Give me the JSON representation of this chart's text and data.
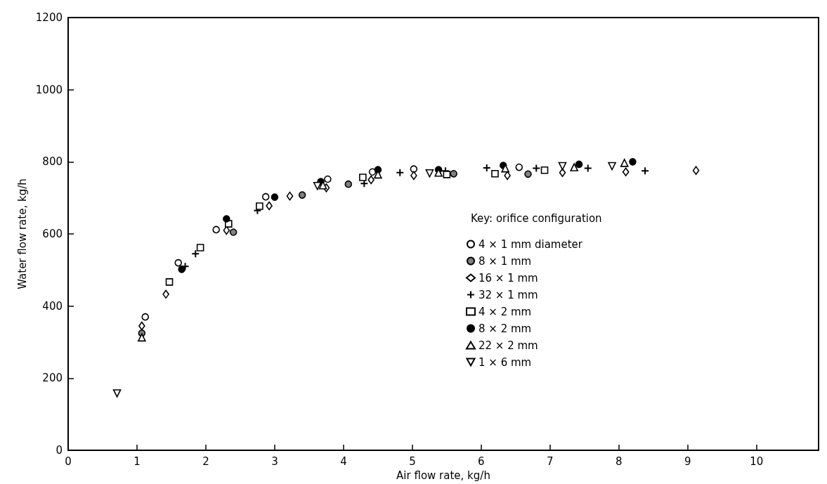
{
  "chart_data": {
    "type": "scatter",
    "xlabel": "Air flow rate, kg/h",
    "ylabel": "Water flow rate, kg/h",
    "legend_title": "Key: orifice configuration",
    "legend": "right",
    "grid": false,
    "xlim": [
      0,
      10.9
    ],
    "xticks": [
      0,
      1,
      2,
      3,
      4,
      5,
      6,
      7,
      8,
      9,
      10
    ],
    "ylim": [
      0,
      1200
    ],
    "yticks": [
      0,
      200,
      400,
      600,
      800,
      1000,
      1200
    ],
    "series": [
      {
        "name": "4 × 1 mm diameter",
        "color": "#ffffff",
        "marker": "circle",
        "x": [
          1.12,
          1.6,
          2.15,
          2.87,
          3.77,
          4.42,
          5.02,
          6.55
        ],
        "values": [
          370,
          520,
          612,
          703,
          752,
          772,
          780,
          785
        ]
      },
      {
        "name": "8 × 1 mm",
        "color": "#808080",
        "marker": "circle",
        "x": [
          1.07,
          2.4,
          3.4,
          4.07,
          5.6,
          6.68
        ],
        "values": [
          325,
          605,
          708,
          738,
          767,
          766
        ]
      },
      {
        "name": "16 × 1 mm",
        "color": "#ffffff",
        "marker": "diamond",
        "x": [
          1.07,
          1.42,
          2.3,
          2.92,
          3.22,
          3.75,
          4.4,
          5.02,
          6.38,
          7.18,
          8.1,
          9.12
        ],
        "values": [
          345,
          433,
          610,
          678,
          705,
          728,
          750,
          762,
          762,
          770,
          772,
          776
        ]
      },
      {
        "name": "32 × 1 mm",
        "color": "#000000",
        "marker": "cross",
        "x": [
          1.7,
          1.85,
          2.75,
          4.3,
          4.82,
          5.48,
          6.08,
          6.8,
          7.55,
          8.38
        ],
        "values": [
          510,
          545,
          665,
          740,
          770,
          775,
          783,
          782,
          782,
          775
        ]
      },
      {
        "name": "4 × 2 mm",
        "color": "#ffffff",
        "marker": "square",
        "x": [
          1.47,
          1.92,
          2.33,
          2.78,
          4.28,
          5.5,
          6.2,
          6.92
        ],
        "values": [
          467,
          562,
          628,
          677,
          757,
          765,
          767,
          777
        ]
      },
      {
        "name": "8 × 2 mm",
        "color": "#000000",
        "marker": "circle",
        "x": [
          1.65,
          2.3,
          3.0,
          3.67,
          4.5,
          5.38,
          6.32,
          7.42,
          8.2
        ],
        "values": [
          502,
          642,
          702,
          745,
          778,
          778,
          790,
          793,
          800
        ]
      },
      {
        "name": "22 × 2 mm",
        "color": "#ffffff",
        "marker": "triangle",
        "x": [
          1.07,
          3.7,
          4.5,
          5.38,
          6.35,
          7.35,
          8.08
        ],
        "values": [
          313,
          735,
          765,
          770,
          782,
          785,
          797
        ]
      },
      {
        "name": "1 × 6 mm",
        "color": "#ffffff",
        "marker": "triangle-down",
        "x": [
          0.71,
          3.62,
          5.25,
          7.18,
          7.9
        ],
        "values": [
          158,
          733,
          768,
          788,
          788
        ]
      }
    ]
  }
}
